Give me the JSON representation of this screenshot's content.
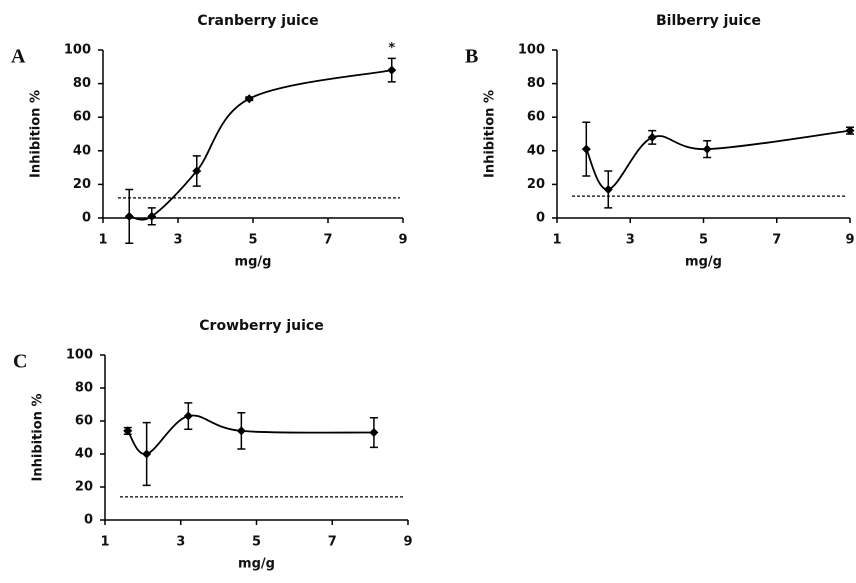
{
  "chart_data": [
    {
      "type": "line",
      "panel": "A",
      "title": "Cranberry juice",
      "xlabel": "mg/g",
      "ylabel": "Inhibition %",
      "x": [
        1.7,
        2.3,
        3.5,
        4.9,
        8.7
      ],
      "values": [
        1,
        1,
        28,
        71,
        88
      ],
      "errors": [
        16,
        5,
        9,
        1,
        7
      ],
      "point_labels": [
        null,
        null,
        null,
        null,
        "*"
      ],
      "threshold": 12,
      "color": "#000000",
      "xlim": [
        1,
        9
      ],
      "xticks": [
        1,
        3,
        5,
        7,
        9
      ],
      "ylim": [
        0,
        100
      ],
      "yticks": [
        0,
        20,
        40,
        60,
        80,
        100
      ]
    },
    {
      "type": "line",
      "panel": "B",
      "title": "Bilberry juice",
      "xlabel": "mg/g",
      "ylabel": "Inhibition %",
      "x": [
        1.8,
        2.4,
        3.6,
        5.1,
        9.0
      ],
      "values": [
        41,
        17,
        48,
        41,
        52
      ],
      "errors": [
        16,
        11,
        4,
        5,
        2
      ],
      "threshold": 13,
      "color": "#000000",
      "xlim": [
        1,
        9
      ],
      "xticks": [
        1,
        3,
        5,
        7,
        9
      ],
      "ylim": [
        0,
        100
      ],
      "yticks": [
        0,
        20,
        40,
        60,
        80,
        100
      ]
    },
    {
      "type": "line",
      "panel": "C",
      "title": "Crowberry juice",
      "xlabel": "mg/g",
      "ylabel": "Inhibition %",
      "x": [
        1.6,
        2.1,
        3.2,
        4.6,
        8.1
      ],
      "values": [
        54,
        40,
        63,
        54,
        53
      ],
      "errors": [
        2,
        19,
        8,
        11,
        9
      ],
      "threshold": 14,
      "color": "#000000",
      "xlim": [
        1,
        9
      ],
      "xticks": [
        1,
        3,
        5,
        7,
        9
      ],
      "ylim": [
        0,
        100
      ],
      "yticks": [
        0,
        20,
        40,
        60,
        80,
        100
      ]
    }
  ]
}
